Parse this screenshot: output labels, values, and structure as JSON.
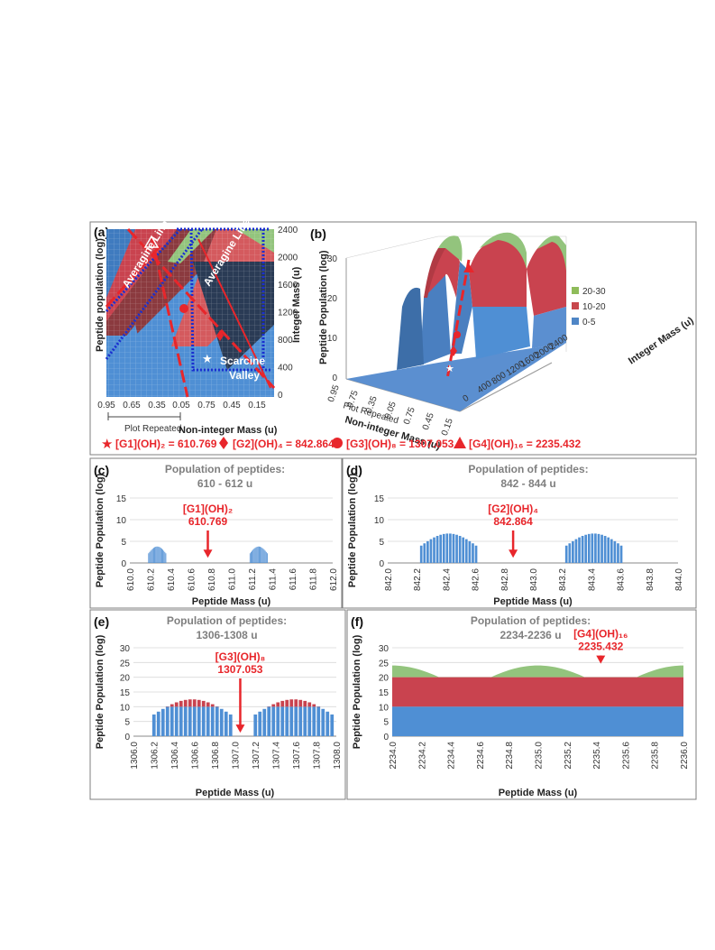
{
  "top": {
    "panel_a_label": "(a)",
    "panel_b_label": "(b)",
    "a_ylabel": "Peptide population (log)",
    "a_right_label": "Integer Mass (u)",
    "a_xlabel": "Non-integer Mass (u)",
    "a_plot_repeated": "Plot Repeated",
    "a_xticks": [
      "0.95",
      "0.65",
      "0.35",
      "0.05",
      "0.75",
      "0.45",
      "0.15"
    ],
    "a_yticks": [
      "2400",
      "2000",
      "1600",
      "1200",
      "800",
      "400",
      "0"
    ],
    "a_averagine_1": "Averagine Line",
    "a_averagine_2": "Averagine Line",
    "a_valley_1": "Scarcine",
    "a_valley_2": "Valley",
    "b_ylabel": "Peptide Population (log)",
    "b_xlabel": "Non-integer Mass (u)",
    "b_plot_repeated": "Plot Repeated",
    "b_right_label": "Integer Mass (u)",
    "b_zticks": [
      "30",
      "20",
      "10",
      "0"
    ],
    "b_xticks": [
      "0.95",
      "0.75",
      "0.35",
      "0.05",
      "0.75",
      "0.45",
      "0.15"
    ],
    "b_rticks": [
      "2400",
      "2000",
      "1600",
      "1200",
      "800",
      "400",
      "0"
    ],
    "b_legend": [
      {
        "label": "20-30",
        "color": "#8fbc5a"
      },
      {
        "label": "10-20",
        "color": "#c8474c"
      },
      {
        "label": "0-5",
        "color": "#4f86c6"
      }
    ]
  },
  "formula_legend": [
    {
      "symbol": "star",
      "text": "[G1](OH)₂ = 610.769"
    },
    {
      "symbol": "diamond",
      "text": "[G2](OH)₄ = 842.864"
    },
    {
      "symbol": "circle",
      "text": "[G3](OH)₈ = 1307.053"
    },
    {
      "symbol": "triangle",
      "text": "[G4](OH)₁₆ = 2235.432"
    }
  ],
  "colors": {
    "blue": "#4f8fd4",
    "red": "#c9434f",
    "green": "#93c47d",
    "arrow": "#e8262b",
    "panel_border": "#7f7f7f"
  },
  "chart_data": [
    {
      "id": "c",
      "panel": "(c)",
      "type": "bar",
      "title": "Population of peptides:",
      "subtitle": "610 - 612 u",
      "xlabel": "Peptide Mass (u)",
      "ylabel": "Peptide Population (log)",
      "xlim": [
        610.0,
        612.0
      ],
      "ylim": [
        0,
        15
      ],
      "xticks": [
        "610.0",
        "610.2",
        "610.4",
        "610.6",
        "610.8",
        "611.0",
        "611.2",
        "611.4",
        "611.6",
        "611.8",
        "612.0"
      ],
      "yticks": [
        "0",
        "5",
        "10",
        "15"
      ],
      "groups": [
        {
          "x0": 610.18,
          "x1": 610.36,
          "peak": 3.8
        },
        {
          "x0": 611.18,
          "x1": 611.36,
          "peak": 3.8
        }
      ],
      "annotation": {
        "line1": "[G1](OH)₂",
        "line2": "610.769",
        "x": 610.769
      }
    },
    {
      "id": "d",
      "panel": "(d)",
      "type": "bar",
      "title": "Population of peptides:",
      "subtitle": "842 - 844 u",
      "xlabel": "Peptide Mass (u)",
      "ylabel": "Peptide Population (log)",
      "xlim": [
        842.0,
        844.0
      ],
      "ylim": [
        0,
        15
      ],
      "xticks": [
        "842.0",
        "842.2",
        "842.4",
        "842.6",
        "842.8",
        "843.0",
        "843.2",
        "843.4",
        "843.6",
        "843.8",
        "844.0"
      ],
      "yticks": [
        "0",
        "5",
        "10",
        "15"
      ],
      "groups": [
        {
          "x0": 842.22,
          "x1": 842.62,
          "peak": 6.8
        },
        {
          "x0": 843.22,
          "x1": 843.62,
          "peak": 6.8
        }
      ],
      "annotation": {
        "line1": "[G2](OH)₄",
        "line2": "842.864",
        "x": 842.864
      }
    },
    {
      "id": "e",
      "panel": "(e)",
      "type": "area",
      "title": "Population of peptides:",
      "subtitle": "1306-1308 u",
      "xlabel": "Peptide Mass (u)",
      "ylabel": "Peptide Population (log)",
      "xlim": [
        1306.0,
        1308.0
      ],
      "ylim": [
        0,
        30
      ],
      "xticks": [
        "1306.0",
        "1306.2",
        "1306.4",
        "1306.6",
        "1306.8",
        "1307.0",
        "1307.2",
        "1307.4",
        "1307.6",
        "1307.8",
        "1308.0"
      ],
      "yticks": [
        "0",
        "5",
        "10",
        "15",
        "20",
        "25",
        "30"
      ],
      "groups": [
        {
          "x0": 1306.18,
          "x1": 1306.98,
          "peak": 12.5
        },
        {
          "x0": 1307.18,
          "x1": 1307.98,
          "peak": 12.5
        }
      ],
      "annotation": {
        "line1": "[G3](OH)₈",
        "line2": "1307.053",
        "x": 1307.053
      }
    },
    {
      "id": "f",
      "panel": "(f)",
      "type": "area",
      "title": "Population of peptides:",
      "subtitle": "2234-2236 u",
      "xlabel": "Peptide Mass (u)",
      "ylabel": "Peptide Population (log)",
      "xlim": [
        2234.0,
        2236.0
      ],
      "ylim": [
        0,
        30
      ],
      "xticks": [
        "2234.0",
        "2234.2",
        "2234.4",
        "2234.6",
        "2234.8",
        "2235.0",
        "2235.2",
        "2235.4",
        "2235.6",
        "2235.8",
        "2236.0"
      ],
      "yticks": [
        "0",
        "5",
        "10",
        "15",
        "20",
        "25",
        "30"
      ],
      "layers": {
        "blue": 10,
        "red": 20,
        "green_max": 24,
        "green_min": 15.5,
        "dips": [
          2234.5,
          2235.5
        ]
      },
      "annotation": {
        "line1": "[G4](OH)₁₆",
        "line2": "2235.432",
        "x": 2235.432
      }
    }
  ]
}
